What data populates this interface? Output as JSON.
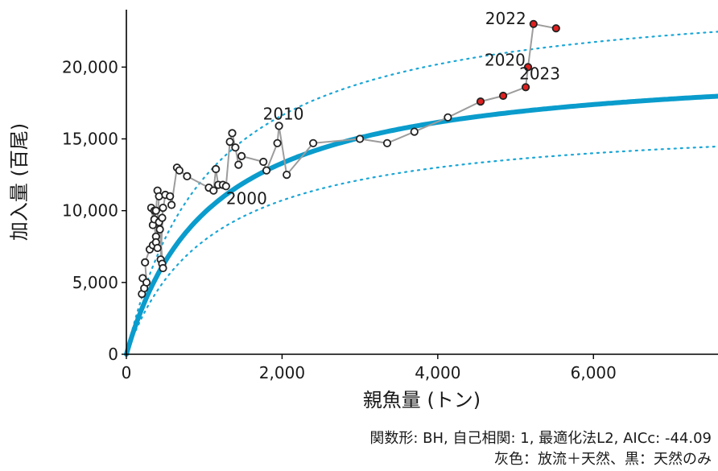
{
  "chart_data": {
    "type": "scatter",
    "xlabel": "親魚量 (トン)",
    "ylabel": "加入量 (百尾)",
    "xlim": [
      0,
      7600
    ],
    "ylim": [
      0,
      24000
    ],
    "x_ticks": [
      0,
      2000,
      4000,
      6000
    ],
    "x_tick_labels": [
      "0",
      "2,000",
      "4,000",
      "6,000"
    ],
    "y_ticks": [
      0,
      5000,
      10000,
      15000,
      20000
    ],
    "y_tick_labels": [
      "0",
      "5,000",
      "10,000",
      "15,000",
      "20,000"
    ],
    "grid": false,
    "fit_curve": {
      "model": "BH",
      "a": 18.9,
      "b": 0.00092,
      "color": "#0a9ccc",
      "upper_interval_factor": 1.25,
      "lower_interval_factor": 0.805,
      "interval_color": "#1aa6d6"
    },
    "points": [
      [
        200,
        4200
      ],
      [
        230,
        4600
      ],
      [
        210,
        5300
      ],
      [
        260,
        5000
      ],
      [
        240,
        6400
      ],
      [
        300,
        7300
      ],
      [
        340,
        7600
      ],
      [
        380,
        8200
      ],
      [
        320,
        10200
      ],
      [
        360,
        10000
      ],
      [
        340,
        9000
      ],
      [
        360,
        9400
      ],
      [
        380,
        10000
      ],
      [
        400,
        11400
      ],
      [
        420,
        11000
      ],
      [
        380,
        7800
      ],
      [
        400,
        7400
      ],
      [
        420,
        9200
      ],
      [
        460,
        9500
      ],
      [
        470,
        10200
      ],
      [
        440,
        6600
      ],
      [
        460,
        6300
      ],
      [
        470,
        6000
      ],
      [
        430,
        8700
      ],
      [
        500,
        11100
      ],
      [
        560,
        11000
      ],
      [
        580,
        10400
      ],
      [
        650,
        13000
      ],
      [
        680,
        12800
      ],
      [
        780,
        12400
      ],
      [
        1060,
        11600
      ],
      [
        1120,
        11400
      ],
      [
        1150,
        12900
      ],
      [
        1180,
        11800
      ],
      [
        1240,
        11800
      ],
      [
        1280,
        11700
      ],
      [
        1330,
        14800
      ],
      [
        1360,
        15400
      ],
      [
        1400,
        14400
      ],
      [
        1440,
        13200
      ],
      [
        1480,
        13800
      ],
      [
        1760,
        13400
      ],
      [
        1800,
        12800
      ],
      [
        1940,
        14700
      ],
      [
        1960,
        15900
      ],
      [
        2060,
        12500
      ],
      [
        2400,
        14700
      ],
      [
        3000,
        15000
      ],
      [
        3350,
        14700
      ],
      [
        3700,
        15500
      ],
      [
        4130,
        16500
      ],
      [
        4550,
        17600
      ],
      [
        4840,
        18000
      ],
      [
        5130,
        18600
      ],
      [
        5160,
        20000
      ],
      [
        5230,
        23000
      ],
      [
        5520,
        22700
      ]
    ],
    "highlight_indices": [
      51,
      52,
      53,
      54,
      55,
      56
    ],
    "point_fill_black": "#000000",
    "point_fill_red": "#e02020",
    "line_color": "#9c9c9c",
    "annotations": [
      {
        "text": "2000",
        "x": 1240,
        "y": 11800
      },
      {
        "text": "2010",
        "x": 1960,
        "y": 15900
      },
      {
        "text": "2020",
        "x": 5160,
        "y": 20000
      },
      {
        "text": "2022",
        "x": 5230,
        "y": 23000
      },
      {
        "text": "2023",
        "x": 5130,
        "y": 18600
      }
    ]
  },
  "captions": {
    "line1": "関数形: BH, 自己相関: 1, 最適化法L2, AICc: -44.09",
    "line2": "灰色：放流＋天然、黒：天然のみ"
  }
}
